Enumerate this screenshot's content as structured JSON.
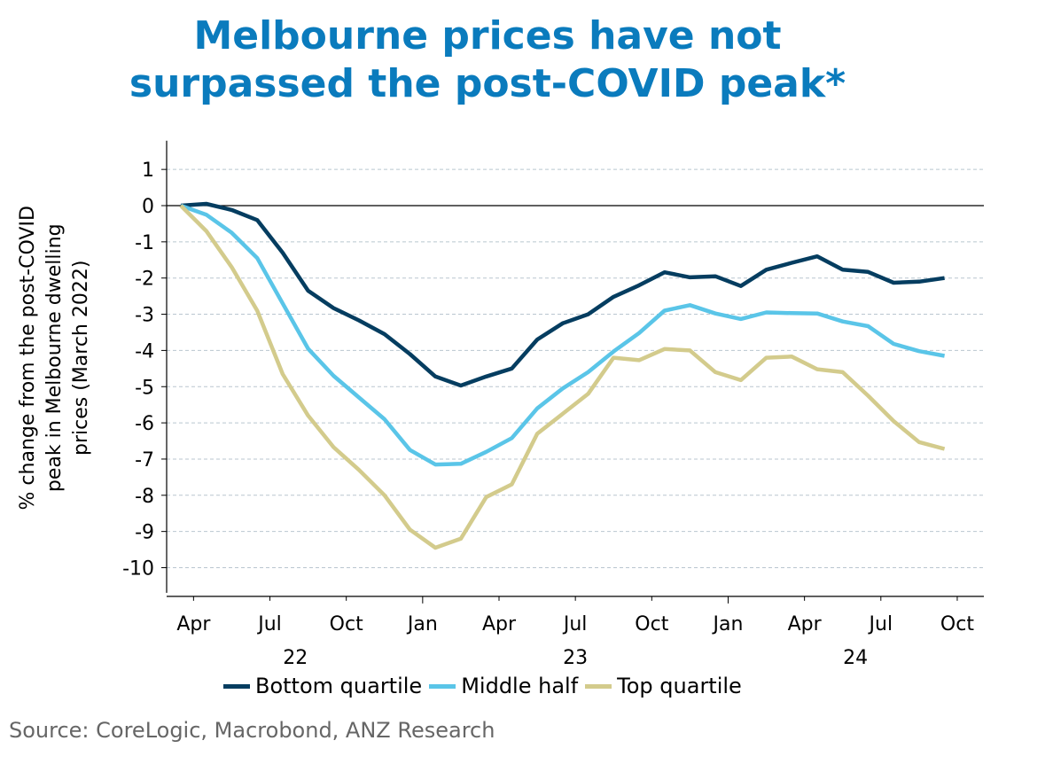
{
  "title_lines": [
    "Melbourne prices have not",
    "surpassed the post-COVID peak*"
  ],
  "source": "Source: CoreLogic, Macrobond, ANZ Research",
  "colors": {
    "title": "#0a7bbd",
    "bottom_quartile": "#053d60",
    "middle_half": "#5ac5e8",
    "top_quartile": "#d3cb8c",
    "grid": "#b9c6cf",
    "source": "#666666"
  },
  "chart_data": {
    "type": "line",
    "title": "Melbourne prices have not surpassed the post-COVID peak*",
    "xlabel": "",
    "ylabel": "% change from the post-COVID peak in Melbourne dwelling prices (March 2022)",
    "ylabel_lines": [
      "% change from the post-COVID",
      "peak in Melbourne dwelling",
      "prices (March 2022)"
    ],
    "ylim": [
      -10.4,
      1.5
    ],
    "yticks": [
      1,
      0,
      -1,
      -2,
      -3,
      -4,
      -5,
      -6,
      -7,
      -8,
      -9,
      -10
    ],
    "grid": true,
    "legend_position": "bottom",
    "x_start": "2022-03",
    "x": [
      "Mar 22",
      "Apr 22",
      "May 22",
      "Jun 22",
      "Jul 22",
      "Aug 22",
      "Sep 22",
      "Oct 22",
      "Nov 22",
      "Dec 22",
      "Jan 23",
      "Feb 23",
      "Mar 23",
      "Apr 23",
      "May 23",
      "Jun 23",
      "Jul 23",
      "Aug 23",
      "Sep 23",
      "Oct 23",
      "Nov 23",
      "Dec 23",
      "Jan 24",
      "Feb 24",
      "Mar 24",
      "Apr 24",
      "May 24",
      "Jun 24",
      "Jul 24",
      "Aug 24",
      "Sep 24"
    ],
    "xticks": [
      {
        "label": "Apr",
        "month_index": 0.5
      },
      {
        "label": "Jul",
        "month_index": 3.5
      },
      {
        "label": "Oct",
        "month_index": 6.5
      },
      {
        "label": "Jan",
        "month_index": 9.5
      },
      {
        "label": "Apr",
        "month_index": 12.5
      },
      {
        "label": "Jul",
        "month_index": 15.5
      },
      {
        "label": "Oct",
        "month_index": 18.5
      },
      {
        "label": "Jan",
        "month_index": 21.5
      },
      {
        "label": "Apr",
        "month_index": 24.5
      },
      {
        "label": "Jul",
        "month_index": 27.5
      },
      {
        "label": "Oct",
        "month_index": 30.5
      }
    ],
    "year_labels": [
      {
        "label": "22",
        "month_index": 4.5
      },
      {
        "label": "23",
        "month_index": 15.5
      },
      {
        "label": "24",
        "month_index": 26.5
      }
    ],
    "series": [
      {
        "name": "Bottom quartile",
        "color": "#053d60",
        "values": [
          0,
          0.05,
          -0.12,
          -0.4,
          -1.3,
          -2.35,
          -2.83,
          -3.17,
          -3.55,
          -4.1,
          -4.72,
          -4.97,
          -4.72,
          -4.5,
          -3.7,
          -3.25,
          -3.0,
          -2.52,
          -2.2,
          -1.84,
          -1.98,
          -1.95,
          -2.22,
          -1.77,
          -1.58,
          -1.4,
          -1.77,
          -1.83,
          -2.13,
          -2.1,
          -2.0
        ]
      },
      {
        "name": "Middle half",
        "color": "#5ac5e8",
        "values": [
          0,
          -0.25,
          -0.75,
          -1.45,
          -2.7,
          -3.95,
          -4.7,
          -5.3,
          -5.9,
          -6.75,
          -7.15,
          -7.13,
          -6.8,
          -6.42,
          -5.6,
          -5.05,
          -4.6,
          -4.03,
          -3.52,
          -2.9,
          -2.75,
          -2.98,
          -3.13,
          -2.95,
          -2.97,
          -2.98,
          -3.2,
          -3.33,
          -3.82,
          -4.02,
          -4.15
        ]
      },
      {
        "name": "Top quartile",
        "color": "#d3cb8c",
        "values": [
          0,
          -0.7,
          -1.7,
          -2.9,
          -4.65,
          -5.8,
          -6.67,
          -7.3,
          -8.0,
          -8.95,
          -9.45,
          -9.2,
          -8.05,
          -7.7,
          -6.3,
          -5.75,
          -5.2,
          -4.2,
          -4.27,
          -3.96,
          -4.0,
          -4.6,
          -4.82,
          -4.2,
          -4.17,
          -4.52,
          -4.6,
          -5.25,
          -5.95,
          -6.53,
          -6.72
        ]
      }
    ]
  }
}
